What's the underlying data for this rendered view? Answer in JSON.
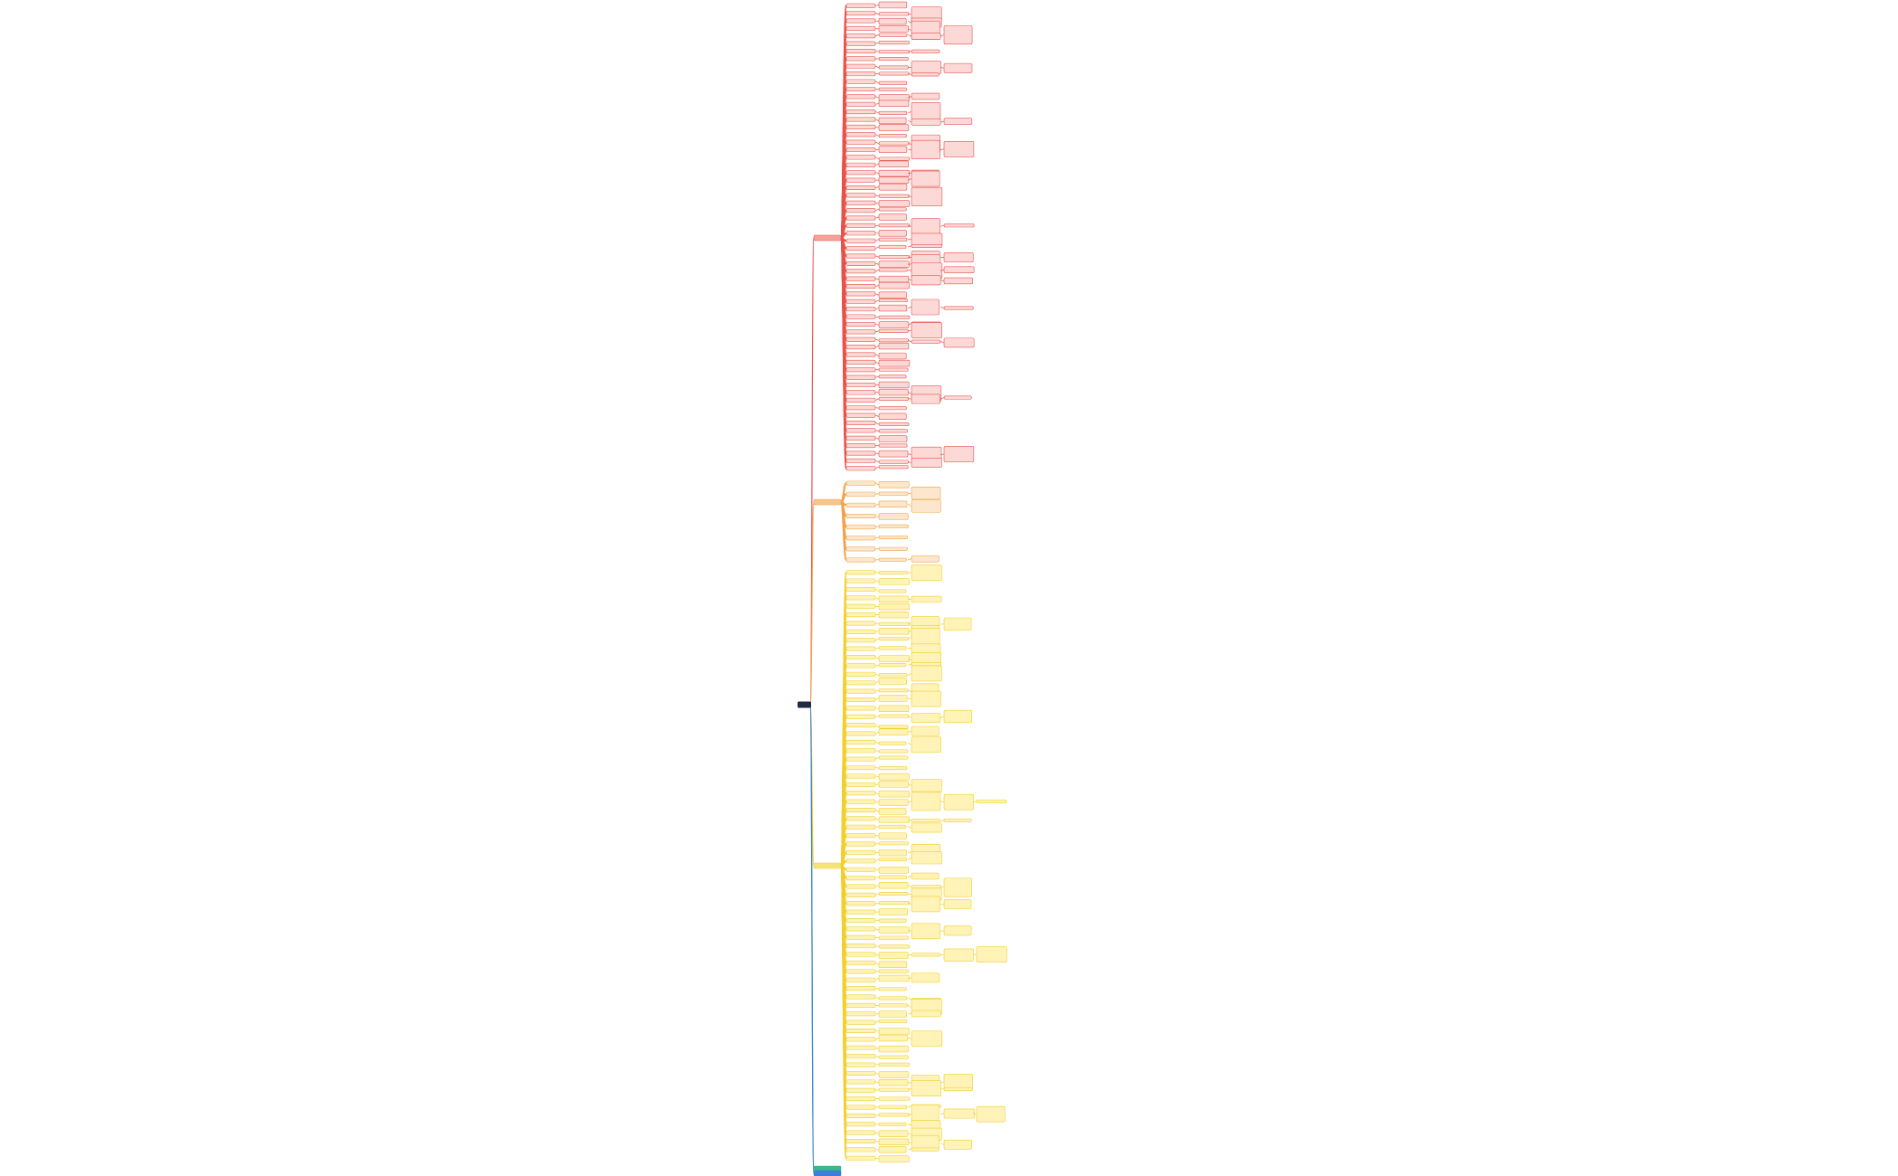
{
  "mindmap": {
    "root": {
      "color": "#1f2a44"
    },
    "branches": [
      {
        "color": "#e8524a",
        "fill": "#fcd9d6",
        "node": "#f6a19b"
      },
      {
        "color": "#f0a24a",
        "fill": "#fde7cc",
        "node": "#f7c58d"
      },
      {
        "color": "#f1cf2e",
        "fill": "#fff3b8",
        "node": "#f7e27a"
      },
      {
        "color": "#3bb98a",
        "fill": "#c8efdf",
        "node": "#3bb98a"
      },
      {
        "color": "#3d7fd6",
        "fill": "#cddff7",
        "node": "#3d7fd6"
      }
    ]
  }
}
